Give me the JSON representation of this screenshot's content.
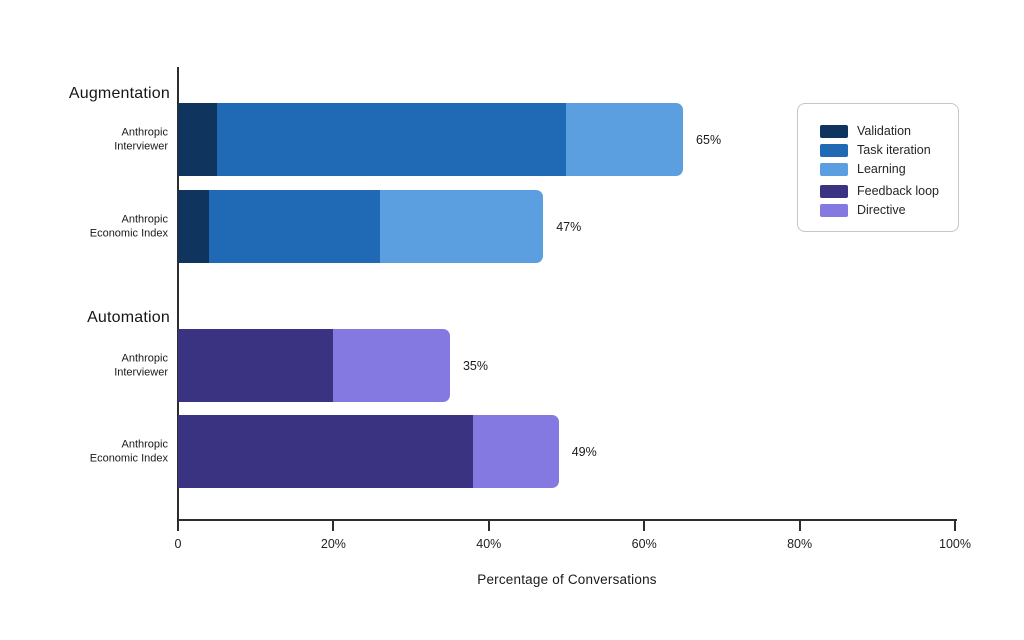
{
  "chart_data": {
    "type": "bar",
    "orientation": "horizontal",
    "stacked": true,
    "title": "",
    "xlabel": "Percentage of Conversations",
    "ylabel": "",
    "xlim": [
      0,
      100
    ],
    "x_ticks": [
      "0",
      "20%",
      "40%",
      "60%",
      "80%",
      "100%"
    ],
    "x_tick_values": [
      0,
      20,
      40,
      60,
      80,
      100
    ],
    "grid": false,
    "legend": {
      "position": "right",
      "groups": [
        {
          "entries": [
            {
              "label": "Validation",
              "color": "#0f345e"
            },
            {
              "label": "Task iteration",
              "color": "#2069b5"
            },
            {
              "label": "Learning",
              "color": "#5b9fe0"
            }
          ]
        },
        {
          "entries": [
            {
              "label": "Feedback loop",
              "color": "#3a3381"
            },
            {
              "label": "Directive",
              "color": "#8379e0"
            }
          ]
        }
      ]
    },
    "sections": [
      {
        "title": "Augmentation",
        "rows": [
          {
            "label_lines": [
              "Anthropic",
              "Interviewer"
            ],
            "total": 65,
            "total_label": "65%",
            "segments": [
              {
                "name": "Validation",
                "value": 5,
                "color": "#0f345e"
              },
              {
                "name": "Task iteration",
                "value": 45,
                "color": "#2069b5"
              },
              {
                "name": "Learning",
                "value": 15,
                "color": "#5b9fe0"
              }
            ]
          },
          {
            "label_lines": [
              "Anthropic",
              "Economic Index"
            ],
            "total": 47,
            "total_label": "47%",
            "segments": [
              {
                "name": "Validation",
                "value": 4,
                "color": "#0f345e"
              },
              {
                "name": "Task iteration",
                "value": 22,
                "color": "#2069b5"
              },
              {
                "name": "Learning",
                "value": 21,
                "color": "#5b9fe0"
              }
            ]
          }
        ]
      },
      {
        "title": "Automation",
        "rows": [
          {
            "label_lines": [
              "Anthropic",
              "Interviewer"
            ],
            "total": 35,
            "total_label": "35%",
            "segments": [
              {
                "name": "Feedback loop",
                "value": 20,
                "color": "#3a3381"
              },
              {
                "name": "Directive",
                "value": 15,
                "color": "#8379e0"
              }
            ]
          },
          {
            "label_lines": [
              "Anthropic",
              "Economic Index"
            ],
            "total": 49,
            "total_label": "49%",
            "segments": [
              {
                "name": "Feedback loop",
                "value": 38,
                "color": "#3a3381"
              },
              {
                "name": "Directive",
                "value": 11,
                "color": "#8379e0"
              }
            ]
          }
        ]
      }
    ]
  }
}
